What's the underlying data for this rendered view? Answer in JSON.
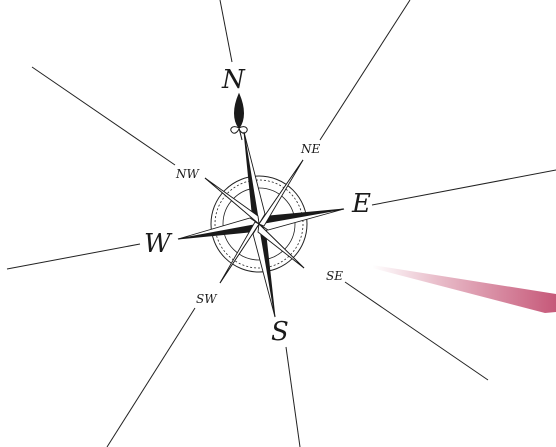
{
  "compass": {
    "north": "N",
    "east": "E",
    "south": "S",
    "west": "W",
    "northeast": "NE",
    "southeast": "SE",
    "southwest": "SW",
    "northwest": "NW"
  },
  "colors": {
    "ink": "#1a1a1a",
    "needle": "#c0466a"
  }
}
